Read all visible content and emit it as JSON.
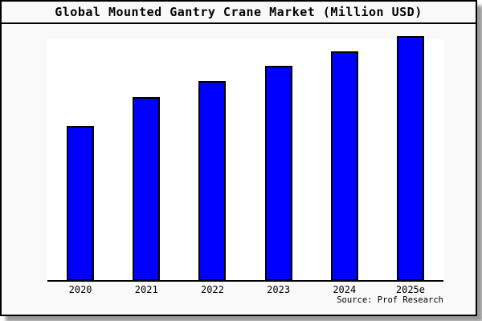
{
  "page": {
    "title": "Global Mounted Gantry Crane Market (Million USD)",
    "source": "Source: Prof Research"
  },
  "chart_data": {
    "type": "bar",
    "title": "Global Mounted Gantry Crane Market (Million USD)",
    "categories": [
      "2020",
      "2021",
      "2022",
      "2023",
      "2024",
      "2025e"
    ],
    "values": [
      62.8,
      74.9,
      81.4,
      87.7,
      93.7,
      100
    ],
    "values_note": "No y-axis ticks, labels or gridlines are shown in the chart; values are bar heights expressed as percent of the tallest bar (2025e = 100)",
    "xlabel": "",
    "ylabel": "",
    "ylim": [
      0,
      100
    ],
    "grid": false,
    "legend": "none",
    "bar_color": "#0000ff",
    "bar_border_color": "#000000",
    "source": "Source: Prof Research"
  },
  "colors": {
    "card_background": "#f9f9f9",
    "plot_background": "#ffffff",
    "frame_border": "#000000",
    "shadow": "#999999",
    "text": "#000000"
  }
}
